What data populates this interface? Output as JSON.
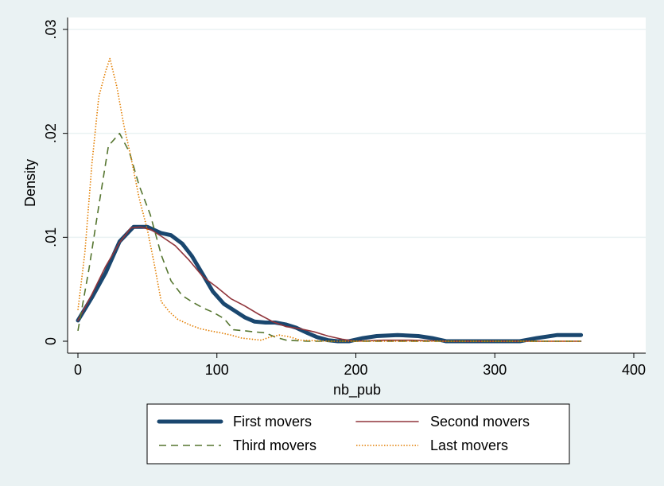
{
  "chart_data": {
    "type": "line",
    "title": "",
    "xlabel": "nb_pub",
    "ylabel": "Density",
    "xlim": [
      0,
      400
    ],
    "ylim": [
      0,
      0.03
    ],
    "xticks": [
      0,
      100,
      200,
      300,
      400
    ],
    "xtick_labels": [
      "0",
      "100",
      "200",
      "300",
      "400"
    ],
    "yticks": [
      0,
      0.01,
      0.02,
      0.03
    ],
    "ytick_labels": [
      "0",
      ".01",
      ".02",
      ".03"
    ],
    "grid": "horizontal",
    "legend_position": "bottom",
    "series": [
      {
        "name": "First movers",
        "color": "#1a476f",
        "style": "solid-thick",
        "points": [
          [
            0,
            0.002
          ],
          [
            10,
            0.0042
          ],
          [
            20,
            0.0066
          ],
          [
            30,
            0.0096
          ],
          [
            40,
            0.011
          ],
          [
            50,
            0.011
          ],
          [
            60,
            0.0104
          ],
          [
            67,
            0.0102
          ],
          [
            75,
            0.0094
          ],
          [
            82,
            0.0082
          ],
          [
            90,
            0.0064
          ],
          [
            97,
            0.0048
          ],
          [
            105,
            0.0036
          ],
          [
            112,
            0.003
          ],
          [
            120,
            0.0023
          ],
          [
            127,
            0.0019
          ],
          [
            135,
            0.0018
          ],
          [
            142,
            0.0018
          ],
          [
            150,
            0.0016
          ],
          [
            157,
            0.0013
          ],
          [
            165,
            0.0008
          ],
          [
            172,
            0.0004
          ],
          [
            180,
            0.0001
          ],
          [
            187,
            0
          ],
          [
            195,
            0
          ],
          [
            205,
            0.0003
          ],
          [
            215,
            0.0005
          ],
          [
            230,
            0.0006
          ],
          [
            245,
            0.0005
          ],
          [
            255,
            0.0003
          ],
          [
            265,
            0
          ],
          [
            280,
            0
          ],
          [
            300,
            0
          ],
          [
            318,
            0
          ],
          [
            330,
            0.0003
          ],
          [
            345,
            0.0006
          ],
          [
            362,
            0.0006
          ]
        ]
      },
      {
        "name": "Second movers",
        "color": "#90353b",
        "style": "solid",
        "points": [
          [
            0,
            0.002
          ],
          [
            10,
            0.0045
          ],
          [
            20,
            0.0072
          ],
          [
            30,
            0.0095
          ],
          [
            38,
            0.0109
          ],
          [
            45,
            0.011
          ],
          [
            53,
            0.0107
          ],
          [
            60,
            0.0101
          ],
          [
            70,
            0.0092
          ],
          [
            80,
            0.0078
          ],
          [
            90,
            0.0062
          ],
          [
            100,
            0.0052
          ],
          [
            110,
            0.0041
          ],
          [
            120,
            0.0034
          ],
          [
            130,
            0.0026
          ],
          [
            140,
            0.0019
          ],
          [
            150,
            0.0014
          ],
          [
            160,
            0.0012
          ],
          [
            170,
            0.0009
          ],
          [
            180,
            0.0005
          ],
          [
            190,
            0.0002
          ],
          [
            200,
            0
          ],
          [
            220,
            0.0001
          ],
          [
            240,
            0.0001
          ],
          [
            265,
            0
          ],
          [
            300,
            0
          ],
          [
            362,
            0
          ]
        ]
      },
      {
        "name": "Third movers",
        "color": "#55752f",
        "style": "dashed",
        "points": [
          [
            0,
            0.001
          ],
          [
            8,
            0.007
          ],
          [
            15,
            0.013
          ],
          [
            22,
            0.0188
          ],
          [
            30,
            0.02
          ],
          [
            37,
            0.0182
          ],
          [
            44,
            0.015
          ],
          [
            52,
            0.0122
          ],
          [
            60,
            0.0083
          ],
          [
            67,
            0.0058
          ],
          [
            75,
            0.0044
          ],
          [
            82,
            0.0038
          ],
          [
            90,
            0.0032
          ],
          [
            97,
            0.0028
          ],
          [
            105,
            0.0022
          ],
          [
            112,
            0.0011
          ],
          [
            120,
            0.001
          ],
          [
            127,
            0.0009
          ],
          [
            135,
            0.0008
          ],
          [
            142,
            0.0004
          ],
          [
            150,
            0.0001
          ],
          [
            165,
            0
          ],
          [
            200,
            0
          ],
          [
            250,
            0
          ],
          [
            300,
            0
          ],
          [
            362,
            0
          ]
        ]
      },
      {
        "name": "Last movers",
        "color": "#e37e00",
        "style": "dotted",
        "points": [
          [
            0,
            0.003
          ],
          [
            5,
            0.0085
          ],
          [
            10,
            0.017
          ],
          [
            15,
            0.0235
          ],
          [
            20,
            0.026
          ],
          [
            23,
            0.0272
          ],
          [
            28,
            0.0245
          ],
          [
            33,
            0.0208
          ],
          [
            38,
            0.0178
          ],
          [
            44,
            0.0138
          ],
          [
            50,
            0.0107
          ],
          [
            55,
            0.0074
          ],
          [
            60,
            0.0038
          ],
          [
            66,
            0.0028
          ],
          [
            72,
            0.0021
          ],
          [
            80,
            0.0016
          ],
          [
            88,
            0.0012
          ],
          [
            95,
            0.001
          ],
          [
            103,
            0.0008
          ],
          [
            110,
            0.0006
          ],
          [
            118,
            0.0003
          ],
          [
            125,
            0.0002
          ],
          [
            132,
            0.0001
          ],
          [
            138,
            0.0004
          ],
          [
            145,
            0.0006
          ],
          [
            153,
            0.0004
          ],
          [
            160,
            0.0001
          ],
          [
            180,
            0
          ],
          [
            200,
            0
          ],
          [
            250,
            0
          ],
          [
            300,
            0
          ],
          [
            362,
            0
          ]
        ]
      }
    ]
  }
}
